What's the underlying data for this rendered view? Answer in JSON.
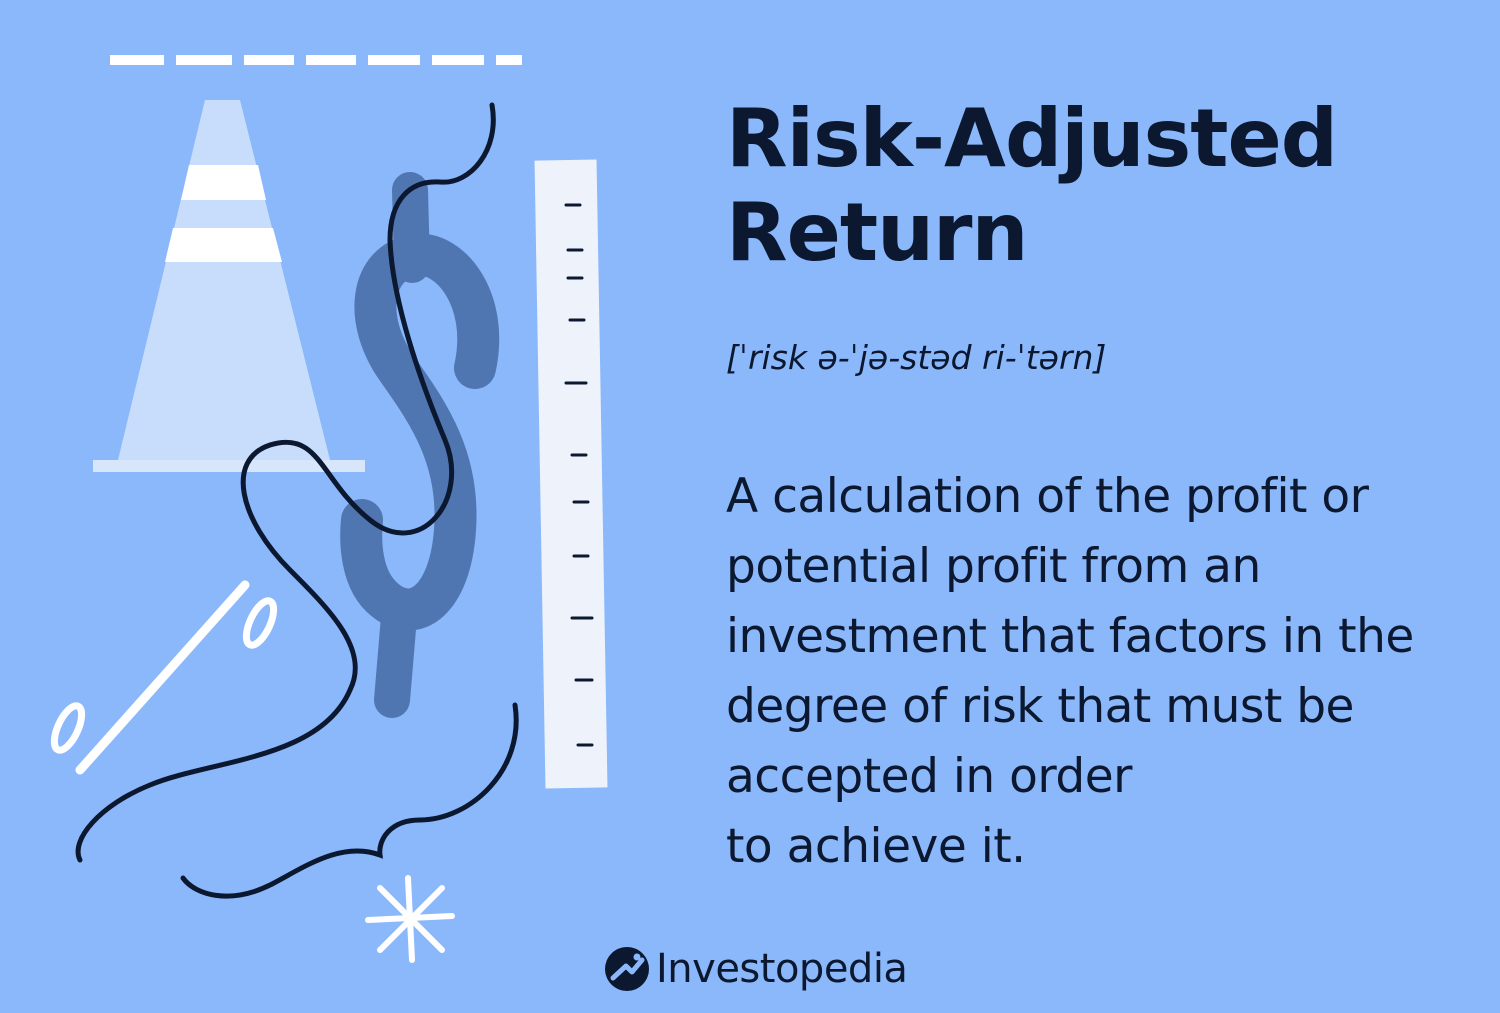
{
  "title": {
    "line1": "Risk-Adjusted",
    "line2": "Return"
  },
  "pronunciation": "[ˈrisk ə-ˈjə-stəd ri-ˈtərn]",
  "definition": {
    "lines": [
      "A calculation of the profit or",
      "potential profit from an",
      "investment that factors in the",
      "degree of risk that must be",
      "accepted in order",
      "to achieve it."
    ]
  },
  "brand": {
    "name": "Investopedia",
    "logo_icon": "investopedia-logo-icon"
  },
  "illustration": {
    "elements": [
      "traffic-cone",
      "dollar-sign",
      "ruler",
      "percent-sign",
      "asterisk",
      "dashed-line",
      "squiggle-line"
    ],
    "colors": {
      "background": "#8bb8fb",
      "cone": "#c8dcfb",
      "dollar": "#4f76b0",
      "ruler": "#eef3fb",
      "ink": "#0b1830"
    }
  }
}
